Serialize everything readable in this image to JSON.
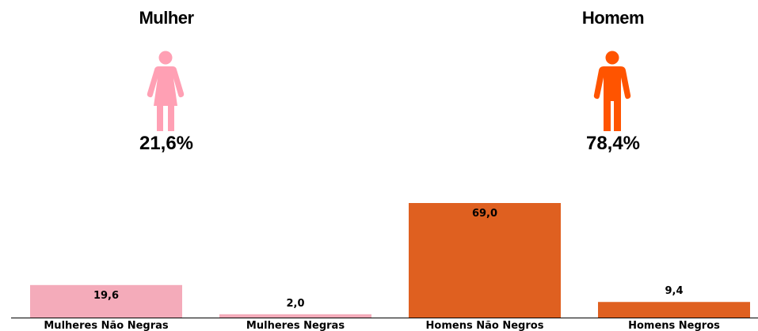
{
  "summary": {
    "female": {
      "title": "Mulher",
      "percent": "21,6%",
      "icon": "woman-icon",
      "color": "#FFA0B4"
    },
    "male": {
      "title": "Homem",
      "percent": "78,4%",
      "icon": "man-icon",
      "color": "#FF5400"
    }
  },
  "chart_data": {
    "type": "bar",
    "categories": [
      "Mulheres Não Negras",
      "Mulheres Negras",
      "Homens Não Negros",
      "Homens Negros"
    ],
    "values": [
      19.6,
      2.0,
      69.0,
      9.4
    ],
    "value_labels": [
      "19,6",
      "2,0",
      "69,0",
      "9,4"
    ],
    "colors": [
      "#F4ABBA",
      "#F4ABBA",
      "#DF6020",
      "#DF6020"
    ],
    "title": "",
    "xlabel": "",
    "ylabel": "",
    "ylim": [
      0,
      69
    ],
    "grid": false,
    "legend": "none"
  }
}
